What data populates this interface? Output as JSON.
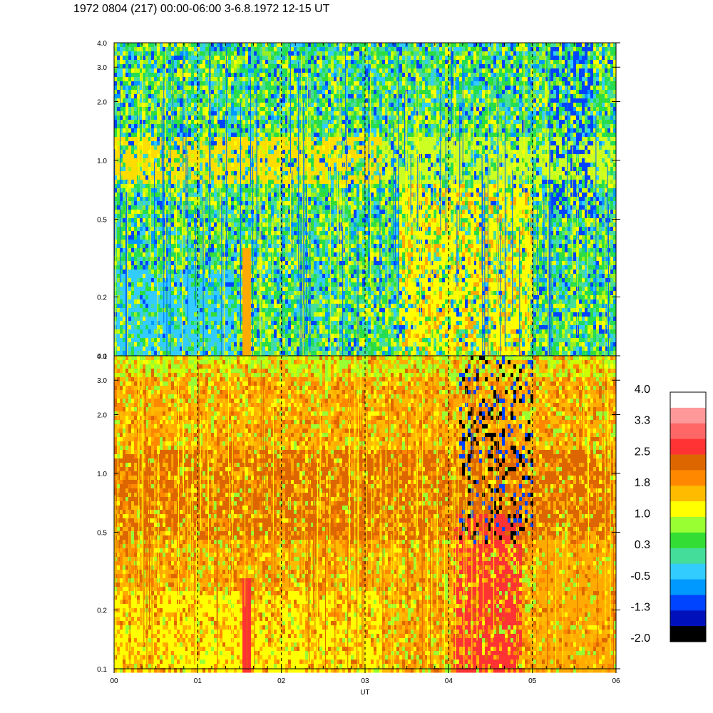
{
  "header": {
    "title": "1972 0804 (217) 00:00-06:00 3-6.8.1972  12-15 UT"
  },
  "chart_data": {
    "type": "heatmap",
    "title": "1972 0804 (217) 00:00-06:00 3-6.8.1972  12-15 UT",
    "xlabel": "UT",
    "x_ticks": [
      "00",
      "01",
      "02",
      "03",
      "04",
      "05",
      "06"
    ],
    "x_range_hours": [
      0,
      6
    ],
    "y_scale": "log",
    "panels": [
      {
        "name": "upper",
        "y_range": [
          0.1,
          4.0
        ],
        "y_ticks": [
          "0.1",
          "0.2",
          "0.5",
          "1.0",
          "2.0",
          "3.0",
          "4.0"
        ],
        "dominant_colors": [
          "#22dd66",
          "#99ee22",
          "#33ccff",
          "#0066ff"
        ],
        "features": "green/cyan background with a yellow band near 1.0; orange column near 01:33; yellow/orange region 03:40-05:00"
      },
      {
        "name": "lower",
        "y_range": [
          0.1,
          4.0
        ],
        "y_ticks": [
          "0.1",
          "0.2",
          "0.5",
          "1.0",
          "2.0",
          "3.0",
          "4.0"
        ],
        "dominant_colors": [
          "#ffaa00",
          "#ff8800",
          "#ffff00",
          "#dd6600"
        ],
        "features": "orange/yellow background; dark-orange band near 0.5-1.0; red column near 01:33; red region 04:05-04:50; black/blue patches 04:10-05:00 above 0.5"
      }
    ],
    "colorbar": {
      "labels": [
        "4.0",
        "3.3",
        "2.5",
        "1.8",
        "1.0",
        "0.3",
        "-0.5",
        "-1.3",
        "-2.0"
      ],
      "colors": [
        "#ffffff",
        "#ff9999",
        "#ff6666",
        "#ff3333",
        "#dd6600",
        "#ff8800",
        "#ffbb00",
        "#ffff00",
        "#99ff33",
        "#33dd33",
        "#44dd99",
        "#33ccff",
        "#0099ff",
        "#0044ff",
        "#0011bb",
        "#000000"
      ],
      "range": [
        -2.0,
        4.0
      ]
    },
    "grid": "dashed vertical lines at each hour"
  }
}
